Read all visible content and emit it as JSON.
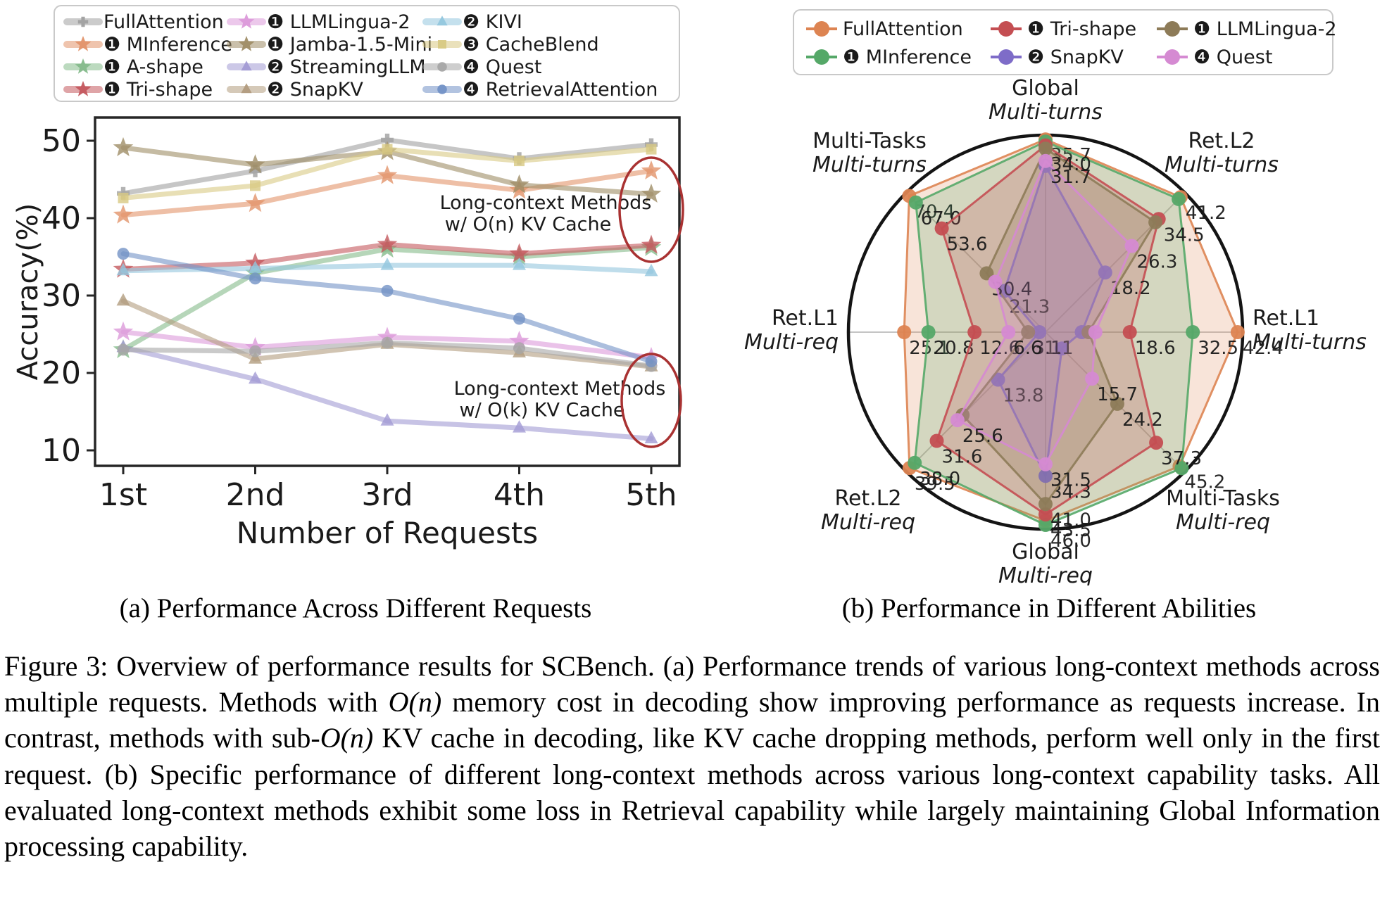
{
  "figure_a": {
    "type": "line",
    "subcaption": "(a) Performance Across Different Requests",
    "xlabel": "Number of Requests",
    "ylabel": "Accuracy(%)",
    "xticks": [
      "1st",
      "2nd",
      "3rd",
      "4th",
      "5th"
    ],
    "yticks": [
      10,
      20,
      30,
      40,
      50
    ],
    "ylim": [
      8,
      53
    ],
    "annotation_color": "#a93232",
    "annotations": [
      {
        "line1": "Long-context Methods",
        "line2": "w/ O(n) KV Cache"
      },
      {
        "line1": "Long-context Methods",
        "line2": "w/ O(k) KV Cache"
      }
    ],
    "series": [
      {
        "label": "FullAttention",
        "badge": "",
        "marker": "plus",
        "color": "#a0a0a0",
        "values": [
          43.2,
          46.1,
          50.1,
          47.7,
          49.5
        ]
      },
      {
        "label": "MInference",
        "badge": "❶",
        "marker": "star",
        "color": "#e2946a",
        "values": [
          40.4,
          41.9,
          45.5,
          43.6,
          46.1
        ]
      },
      {
        "label": "A-shape",
        "badge": "❶",
        "marker": "star",
        "color": "#85bb8b",
        "values": [
          23.0,
          32.9,
          36.0,
          35.0,
          36.2
        ]
      },
      {
        "label": "Tri-shape",
        "badge": "❶",
        "marker": "star",
        "color": "#c4595e",
        "values": [
          33.4,
          34.2,
          36.6,
          35.4,
          36.5
        ]
      },
      {
        "label": "LLMLingua-2",
        "badge": "❶",
        "marker": "star",
        "color": "#dc9ada",
        "values": [
          25.3,
          23.3,
          24.6,
          24.1,
          22.0
        ]
      },
      {
        "label": "Jamba-1.5-Mini",
        "badge": "❶",
        "marker": "star",
        "color": "#9f8d66",
        "values": [
          49.1,
          46.9,
          48.6,
          44.3,
          43.1
        ]
      },
      {
        "label": "StreamingLLM",
        "badge": "❷",
        "marker": "tri",
        "color": "#a29bd4",
        "values": [
          23.3,
          19.2,
          13.8,
          12.9,
          11.5
        ]
      },
      {
        "label": "SnapKV",
        "badge": "❷",
        "marker": "tri",
        "color": "#b29c7e",
        "values": [
          29.3,
          21.8,
          23.7,
          22.6,
          20.8
        ]
      },
      {
        "label": "KIVI",
        "badge": "❷",
        "marker": "tri",
        "color": "#94c7de",
        "values": [
          33.2,
          33.5,
          33.9,
          33.9,
          33.1
        ]
      },
      {
        "label": "CacheBlend",
        "badge": "❸",
        "marker": "square",
        "color": "#d8c983",
        "values": [
          42.6,
          44.2,
          48.9,
          47.4,
          48.9
        ]
      },
      {
        "label": "Quest",
        "badge": "❹",
        "marker": "circle",
        "color": "#a6a6a6",
        "values": [
          23.0,
          22.8,
          23.9,
          23.2,
          20.9
        ]
      },
      {
        "label": "RetrievalAttention",
        "badge": "❹",
        "marker": "circle",
        "color": "#7392c6",
        "values": [
          35.4,
          32.2,
          30.6,
          27.0,
          21.5
        ]
      }
    ]
  },
  "figure_b": {
    "type": "radar",
    "subcaption": "(b) Performance in Different Abilities",
    "axes": [
      {
        "name": "Global",
        "mode": "Multi-turns"
      },
      {
        "name": "Ret.L2",
        "mode": "Multi-turns"
      },
      {
        "name": "Ret.L1",
        "mode": "Multi-turns"
      },
      {
        "name": "Multi-Tasks",
        "mode": "Multi-req"
      },
      {
        "name": "Global",
        "mode": "Multi-req"
      },
      {
        "name": "Ret.L2",
        "mode": "Multi-req"
      },
      {
        "name": "Ret.L1",
        "mode": "Multi-req"
      },
      {
        "name": "Multi-Tasks",
        "mode": "Multi-turns"
      }
    ],
    "axis_max": [
      36.5,
      42.5,
      43.5,
      47,
      47,
      40.5,
      35,
      72
    ],
    "series": [
      {
        "label": "FullAttention",
        "badge": "",
        "color": "#dd8452",
        "values": [
          35.7,
          41.2,
          42.4,
          45.2,
          45.0,
          39.5,
          25.1,
          70.4
        ],
        "labels": [
          35.7,
          41.2,
          42.4,
          45.2,
          null,
          39.5,
          25.1,
          70.4
        ]
      },
      {
        "label": "MInference",
        "badge": "❶",
        "color": "#55a868",
        "values": [
          35.3,
          40.6,
          32.5,
          45.9,
          46.0,
          38.0,
          20.8,
          67.0
        ],
        "labels": [
          null,
          null,
          32.5,
          null,
          46.0,
          38.0,
          20.8,
          67.0
        ]
      },
      {
        "label": "Tri-shape",
        "badge": "❶",
        "color": "#c44e52",
        "values": [
          34.6,
          34.5,
          18.6,
          37.3,
          43.5,
          31.6,
          12.6,
          53.6
        ],
        "labels": [
          null,
          34.5,
          18.6,
          37.3,
          43.5,
          31.6,
          12.6,
          53.6
        ]
      },
      {
        "label": "SnapKV",
        "badge": "❷",
        "color": "#7e6cc8",
        "values": [
          30.8,
          18.2,
          8.0,
          5.5,
          34.3,
          13.8,
          1.1,
          21.3
        ],
        "labels": [
          null,
          18.2,
          null,
          null,
          34.3,
          13.8,
          1.1,
          21.3
        ]
      },
      {
        "label": "LLMLingua-2",
        "badge": "❶",
        "color": "#8d7b58",
        "values": [
          34.0,
          33.5,
          9.5,
          24.2,
          41.0,
          24.1,
          3.1,
          30.4
        ],
        "labels": [
          34.0,
          null,
          null,
          24.2,
          41.0,
          null,
          3.1,
          30.4
        ]
      },
      {
        "label": "Quest",
        "badge": "❹",
        "color": "#d58ad2",
        "values": [
          31.7,
          26.3,
          11.0,
          15.7,
          31.5,
          25.6,
          6.6,
          26.0
        ],
        "labels": [
          31.7,
          26.3,
          null,
          15.7,
          31.5,
          25.6,
          6.6,
          null
        ]
      }
    ]
  },
  "caption": {
    "segments": [
      {
        "t": "Figure 3: Overview of performance results for SCBench. (a) Performance trends of various long-context methods across multiple requests. Methods with "
      },
      {
        "t": "O(n)",
        "italic": true
      },
      {
        "t": " memory cost in decoding show improving performance as requests increase. In contrast, methods with sub-"
      },
      {
        "t": "O(n)",
        "italic": true
      },
      {
        "t": " KV cache in decoding, like KV cache dropping methods, perform well only in the first request. (b) Specific performance of different long-context methods across various long-context capability tasks. All evaluated long-context methods exhibit some loss in Retrieval capability while largely maintaining Global Information processing capability."
      }
    ]
  }
}
